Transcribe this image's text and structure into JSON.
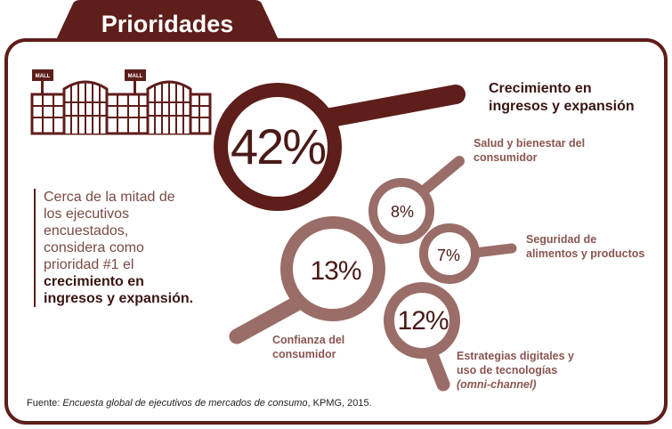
{
  "header": {
    "title": "Prioridades"
  },
  "mall": {
    "sign": "MALL"
  },
  "description": {
    "lines": [
      "Cerca de la mitad de",
      "los ejecutivos",
      "encuestados,",
      "considera como",
      "prioridad #1 el"
    ],
    "bold_lines": [
      "crecimiento en",
      "ingresos y expansión."
    ]
  },
  "source": {
    "prefix": "Fuente: ",
    "title_italic": "Encuesta global de ejecutivos de mercados de consumo",
    "suffix": ", KPMG, 2015."
  },
  "colors": {
    "maroon": "#5e1e1a",
    "mauve": "#9a6d68",
    "label_light": "#8a5550"
  },
  "chart_data": {
    "type": "pictograph",
    "unit": "%",
    "items": [
      {
        "label_lines": [
          "Crecimiento en",
          "ingresos y expansión"
        ],
        "value": 42,
        "display": "42%"
      },
      {
        "label_lines": [
          "Salud y bienestar del",
          "consumidor"
        ],
        "value": 8,
        "display": "8%"
      },
      {
        "label_lines": [
          "Seguridad de",
          "alimentos y productos"
        ],
        "value": 7,
        "display": "7%"
      },
      {
        "label_lines": [
          "Confianza del",
          "consumidor"
        ],
        "value": 13,
        "display": "13%"
      },
      {
        "label_lines": [
          "Estrategias digitales y",
          "uso de tecnologías",
          "(omni-channel)"
        ],
        "value": 12,
        "display": "12%"
      }
    ]
  }
}
